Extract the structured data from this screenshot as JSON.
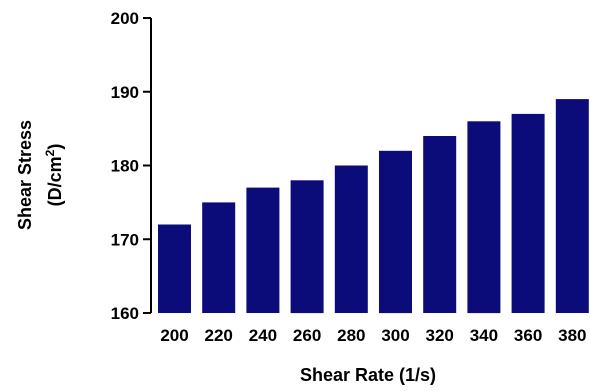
{
  "chart_data": {
    "type": "bar",
    "title": "",
    "xlabel": "Shear Rate (1/s)",
    "ylabel_line1": "Shear Stress",
    "ylabel_line2_prefix": "(D/cm",
    "ylabel_line2_sup": "2",
    "ylabel_line2_suffix": ")",
    "categories": [
      "200",
      "220",
      "240",
      "260",
      "280",
      "300",
      "320",
      "340",
      "360",
      "380"
    ],
    "values": [
      172,
      175,
      177,
      178,
      180,
      182,
      184,
      186,
      187,
      189
    ],
    "ylim": [
      160,
      200
    ],
    "yticks": [
      160,
      170,
      180,
      190,
      200
    ],
    "ytick_labels": [
      "160",
      "170",
      "180",
      "190",
      "200"
    ],
    "bar_color": "#0b0b7a",
    "grid": false,
    "legend": "none"
  }
}
